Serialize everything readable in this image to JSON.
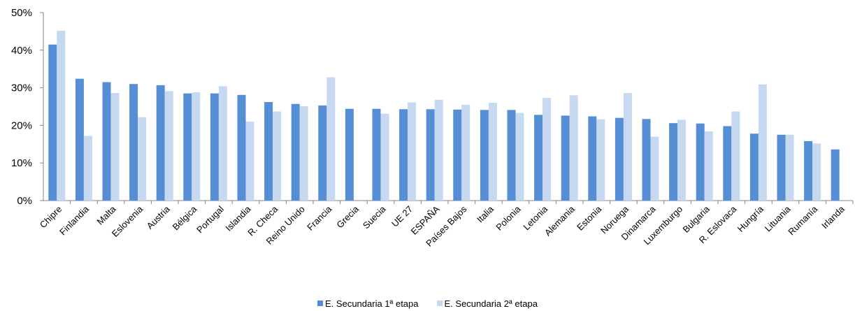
{
  "chart_data": {
    "type": "bar",
    "title": "",
    "xlabel": "",
    "ylabel": "",
    "ylim": [
      0,
      50
    ],
    "yticks": [
      "0%",
      "10%",
      "20%",
      "30%",
      "40%",
      "50%"
    ],
    "grid": false,
    "legend_position": "bottom",
    "categories": [
      "Chipre",
      "Finlandia",
      "Malta",
      "Eslovenia",
      "Austria",
      "Bélgica",
      "Portugal",
      "Islandia",
      "R. Checa",
      "Reino Unido",
      "Francia",
      "Grecia",
      "Suecia",
      "UE 27",
      "ESPAÑA",
      "Países Bajos",
      "Italia",
      "Polonia",
      "Letonia",
      "Alemania",
      "Estonia",
      "Noruega",
      "Dinamarca",
      "Luxemburgo",
      "Bulgaria",
      "R. Eslovaca",
      "Hungría",
      "Lituania",
      "Rumanía",
      "Irlanda"
    ],
    "series": [
      {
        "name": "E. Secundaria 1ª etapa",
        "color": "#558ED5",
        "values": [
          41.5,
          32.4,
          31.5,
          31.0,
          30.7,
          28.5,
          28.5,
          28.1,
          26.2,
          25.7,
          25.3,
          24.4,
          24.4,
          24.3,
          24.3,
          24.2,
          24.1,
          24.1,
          22.8,
          22.6,
          22.4,
          22.0,
          21.7,
          20.6,
          20.5,
          19.8,
          17.8,
          17.5,
          15.8,
          13.6
        ]
      },
      {
        "name": "E. Secundaria 2ª etapa",
        "color": "#C6D9F1",
        "values": [
          45.2,
          17.2,
          28.6,
          22.2,
          29.1,
          28.8,
          30.4,
          21.0,
          23.7,
          25.1,
          32.8,
          null,
          23.1,
          26.1,
          26.8,
          25.5,
          26.0,
          23.3,
          27.3,
          28.0,
          21.6,
          28.6,
          17.0,
          21.5,
          18.4,
          23.7,
          30.9,
          17.5,
          15.2,
          null
        ]
      }
    ]
  }
}
